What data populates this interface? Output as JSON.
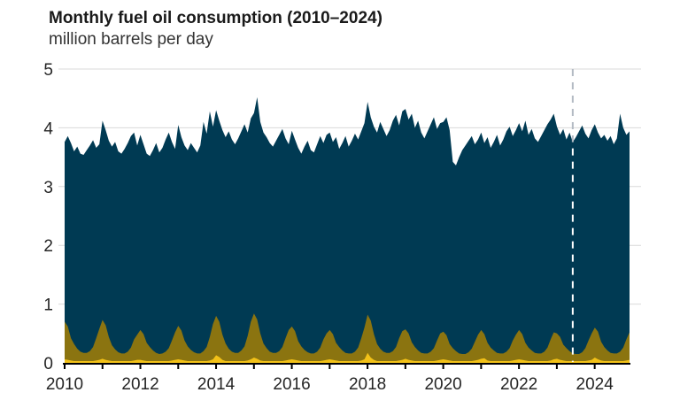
{
  "header": {
    "title": "Monthly fuel oil consumption (2010–2024)",
    "subtitle": "million barrels per day"
  },
  "colors": {
    "background": "#ffffff",
    "title_text": "#1a1a1a",
    "subtitle_text": "#333333",
    "axis_text": "#262626",
    "gridline": "#d9d9d9",
    "axis_line": "#000000",
    "forecast_dash_upper": "#b3bac3",
    "forecast_dash_lower": "#ffffff"
  },
  "chart_data": {
    "type": "area",
    "title": "Monthly fuel oil consumption (2010–2024)",
    "ylabel": "million barrels per day",
    "frequency": "monthly",
    "x_start_year": 2010,
    "x_end_year_fraction": 2024.92,
    "ylim": [
      0,
      5
    ],
    "yticks": [
      0,
      1,
      2,
      3,
      4,
      5
    ],
    "xticks_years": [
      2010,
      2011,
      2012,
      2013,
      2014,
      2015,
      2016,
      2017,
      2018,
      2019,
      2020,
      2021,
      2022,
      2023,
      2024
    ],
    "xtick_label_years": [
      2010,
      2012,
      2014,
      2016,
      2018,
      2020,
      2022,
      2024
    ],
    "grid": "horizontal",
    "legend": "none",
    "forecast_divider_year": 2023.42,
    "series": [
      {
        "name": "dark-blue-area",
        "color": "#003a53",
        "values": [
          3.76,
          3.86,
          3.74,
          3.6,
          3.68,
          3.56,
          3.54,
          3.62,
          3.7,
          3.79,
          3.66,
          3.72,
          4.12,
          3.96,
          3.78,
          3.68,
          3.76,
          3.6,
          3.56,
          3.64,
          3.74,
          3.86,
          3.92,
          3.7,
          3.88,
          3.72,
          3.56,
          3.52,
          3.62,
          3.74,
          3.58,
          3.66,
          3.8,
          3.92,
          3.76,
          3.64,
          4.05,
          3.84,
          3.7,
          3.62,
          3.74,
          3.66,
          3.58,
          3.7,
          4.1,
          3.9,
          4.28,
          4.02,
          4.3,
          4.12,
          3.96,
          3.84,
          3.94,
          3.8,
          3.72,
          3.82,
          3.94,
          4.06,
          3.92,
          4.16,
          4.25,
          4.52,
          4.1,
          3.92,
          3.84,
          3.74,
          3.68,
          3.78,
          3.88,
          3.98,
          3.82,
          3.72,
          3.95,
          3.8,
          3.66,
          3.56,
          3.68,
          3.78,
          3.62,
          3.58,
          3.72,
          3.86,
          3.74,
          3.88,
          3.92,
          3.76,
          3.84,
          3.64,
          3.74,
          3.86,
          3.68,
          3.78,
          3.9,
          3.8,
          3.94,
          4.08,
          4.44,
          4.18,
          4.02,
          3.92,
          4.1,
          3.98,
          3.86,
          3.96,
          4.12,
          4.22,
          4.04,
          4.28,
          4.32,
          4.14,
          4.24,
          4.0,
          4.12,
          3.92,
          3.82,
          3.94,
          4.06,
          4.18,
          3.98,
          4.08,
          4.1,
          4.18,
          3.96,
          3.42,
          3.36,
          3.5,
          3.62,
          3.7,
          3.78,
          3.86,
          3.72,
          3.8,
          3.92,
          3.74,
          3.84,
          3.66,
          3.76,
          3.88,
          3.7,
          3.8,
          3.94,
          4.02,
          3.86,
          3.96,
          4.08,
          3.94,
          4.12,
          3.88,
          3.98,
          3.82,
          3.76,
          3.86,
          3.96,
          4.06,
          4.14,
          4.24,
          4.02,
          3.88,
          3.98,
          3.8,
          3.92,
          3.76,
          3.84,
          3.94,
          4.04,
          3.9,
          3.82,
          3.96,
          4.06,
          3.92,
          3.82,
          3.88,
          3.78,
          3.86,
          3.72,
          3.82,
          4.24,
          4.0,
          3.88,
          3.94
        ]
      },
      {
        "name": "olive-area",
        "color": "#8b7410",
        "values": [
          0.7,
          0.62,
          0.42,
          0.32,
          0.24,
          0.19,
          0.17,
          0.17,
          0.2,
          0.27,
          0.42,
          0.58,
          0.73,
          0.64,
          0.44,
          0.3,
          0.23,
          0.18,
          0.16,
          0.16,
          0.19,
          0.26,
          0.4,
          0.48,
          0.56,
          0.49,
          0.34,
          0.27,
          0.21,
          0.17,
          0.15,
          0.16,
          0.19,
          0.25,
          0.38,
          0.52,
          0.63,
          0.55,
          0.38,
          0.28,
          0.22,
          0.18,
          0.16,
          0.16,
          0.2,
          0.27,
          0.44,
          0.66,
          0.8,
          0.7,
          0.48,
          0.33,
          0.24,
          0.19,
          0.17,
          0.17,
          0.21,
          0.28,
          0.46,
          0.7,
          0.84,
          0.74,
          0.5,
          0.33,
          0.25,
          0.19,
          0.17,
          0.17,
          0.2,
          0.27,
          0.42,
          0.56,
          0.62,
          0.54,
          0.37,
          0.28,
          0.22,
          0.18,
          0.16,
          0.16,
          0.19,
          0.26,
          0.4,
          0.5,
          0.56,
          0.49,
          0.34,
          0.27,
          0.21,
          0.17,
          0.16,
          0.16,
          0.19,
          0.26,
          0.42,
          0.6,
          0.82,
          0.72,
          0.49,
          0.32,
          0.24,
          0.19,
          0.17,
          0.17,
          0.2,
          0.27,
          0.42,
          0.54,
          0.57,
          0.5,
          0.35,
          0.27,
          0.21,
          0.17,
          0.16,
          0.16,
          0.19,
          0.25,
          0.38,
          0.5,
          0.53,
          0.47,
          0.32,
          0.25,
          0.2,
          0.16,
          0.15,
          0.15,
          0.18,
          0.24,
          0.36,
          0.48,
          0.56,
          0.49,
          0.34,
          0.26,
          0.21,
          0.17,
          0.16,
          0.16,
          0.19,
          0.25,
          0.38,
          0.48,
          0.56,
          0.49,
          0.34,
          0.26,
          0.21,
          0.17,
          0.16,
          0.16,
          0.19,
          0.26,
          0.4,
          0.52,
          0.5,
          0.44,
          0.31,
          0.25,
          0.2,
          0.16,
          0.15,
          0.15,
          0.18,
          0.25,
          0.38,
          0.5,
          0.6,
          0.53,
          0.36,
          0.27,
          0.21,
          0.17,
          0.16,
          0.16,
          0.19,
          0.26,
          0.4,
          0.52
        ]
      },
      {
        "name": "yellow-area",
        "color": "#f2c118",
        "values": [
          0.06,
          0.05,
          0.04,
          0.03,
          0.03,
          0.03,
          0.03,
          0.03,
          0.03,
          0.03,
          0.04,
          0.05,
          0.07,
          0.05,
          0.04,
          0.03,
          0.03,
          0.03,
          0.03,
          0.03,
          0.03,
          0.03,
          0.04,
          0.05,
          0.05,
          0.04,
          0.03,
          0.03,
          0.03,
          0.03,
          0.03,
          0.03,
          0.03,
          0.03,
          0.04,
          0.05,
          0.06,
          0.05,
          0.04,
          0.03,
          0.03,
          0.03,
          0.03,
          0.03,
          0.03,
          0.03,
          0.04,
          0.06,
          0.13,
          0.1,
          0.05,
          0.03,
          0.03,
          0.03,
          0.03,
          0.03,
          0.03,
          0.03,
          0.04,
          0.06,
          0.09,
          0.07,
          0.04,
          0.03,
          0.03,
          0.03,
          0.03,
          0.03,
          0.03,
          0.03,
          0.04,
          0.05,
          0.06,
          0.05,
          0.04,
          0.03,
          0.03,
          0.03,
          0.03,
          0.03,
          0.03,
          0.03,
          0.04,
          0.05,
          0.06,
          0.05,
          0.04,
          0.03,
          0.03,
          0.03,
          0.03,
          0.03,
          0.03,
          0.03,
          0.04,
          0.06,
          0.17,
          0.09,
          0.05,
          0.03,
          0.03,
          0.03,
          0.03,
          0.03,
          0.03,
          0.03,
          0.04,
          0.05,
          0.07,
          0.05,
          0.04,
          0.03,
          0.03,
          0.03,
          0.03,
          0.03,
          0.03,
          0.03,
          0.04,
          0.05,
          0.06,
          0.05,
          0.04,
          0.03,
          0.03,
          0.03,
          0.03,
          0.03,
          0.03,
          0.03,
          0.04,
          0.05,
          0.07,
          0.08,
          0.04,
          0.03,
          0.03,
          0.03,
          0.03,
          0.03,
          0.03,
          0.03,
          0.04,
          0.05,
          0.06,
          0.05,
          0.04,
          0.03,
          0.03,
          0.03,
          0.03,
          0.03,
          0.03,
          0.03,
          0.04,
          0.06,
          0.07,
          0.05,
          0.04,
          0.03,
          0.03,
          0.03,
          0.03,
          0.03,
          0.03,
          0.03,
          0.04,
          0.05,
          0.09,
          0.06,
          0.04,
          0.03,
          0.03,
          0.03,
          0.03,
          0.03,
          0.03,
          0.03,
          0.04,
          0.05
        ]
      }
    ]
  }
}
